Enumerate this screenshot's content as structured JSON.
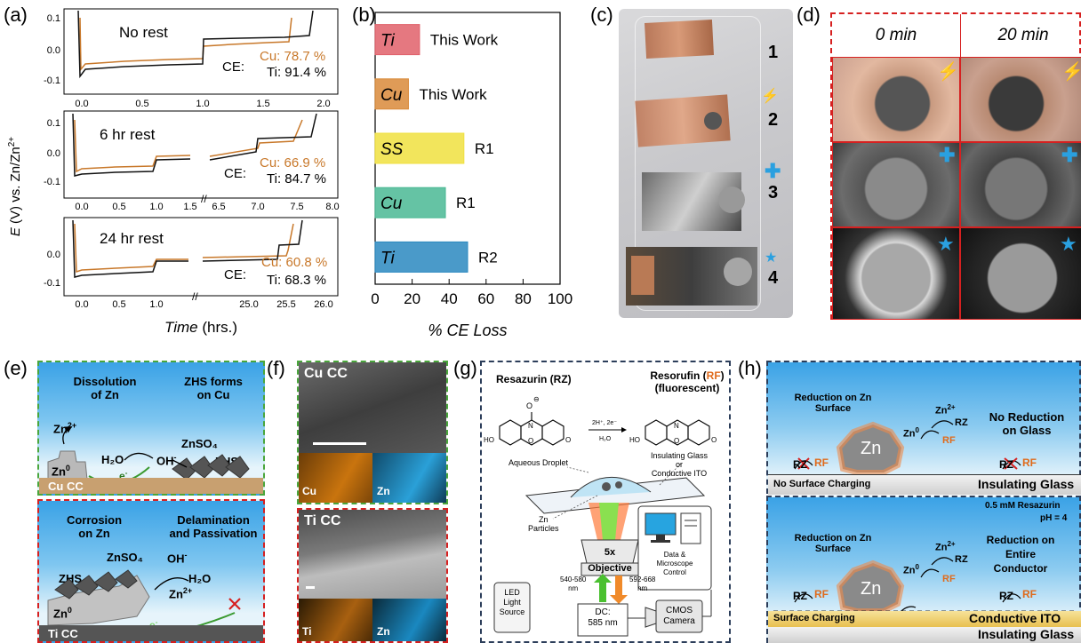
{
  "panels": {
    "a": "(a)",
    "b": "(b)",
    "c": "(c)",
    "d": "(d)",
    "e": "(e)",
    "f": "(f)",
    "g": "(g)",
    "h": "(h)"
  },
  "panel_a": {
    "ylabel_italic": "E",
    "ylabel_rest": " (V) vs. Zn/Zn",
    "ylabel_sup": "2+",
    "xlabel_italic": "Time",
    "xlabel_rest": " (hrs.)",
    "subplots": [
      {
        "title": "No rest",
        "ce": "CE:",
        "cu": "Cu: 78.7 %",
        "ti": "Ti: 91.4 %",
        "yticks": [
          "0.1",
          "0.0",
          "-0.1"
        ],
        "xticks": [
          "0.0",
          "0.5",
          "1.0",
          "1.5",
          "2.0"
        ]
      },
      {
        "title": "6 hr rest",
        "ce": "CE:",
        "cu": "Cu: 66.9 %",
        "ti": "Ti: 84.7 %",
        "yticks": [
          "0.1",
          "0.0",
          "-0.1"
        ],
        "xticks": [
          "0.0",
          "0.5",
          "1.0",
          "1.5",
          "6.5",
          "7.0",
          "7.5",
          "8.0"
        ]
      },
      {
        "title": "24 hr rest",
        "ce": "CE:",
        "cu": "Cu: 60.8 %",
        "ti": "Ti: 68.3 %",
        "yticks": [
          "0.0",
          "-0.1"
        ],
        "xticks": [
          "0.0",
          "0.5",
          "1.0",
          "25.0",
          "25.5",
          "26.0"
        ]
      }
    ],
    "colors": {
      "cu": "#c8782a",
      "ti": "#111111"
    }
  },
  "chart_data": {
    "type": "bar",
    "orientation": "horizontal",
    "categories": [
      "Ti",
      "Cu",
      "SS",
      "Cu",
      "Ti"
    ],
    "annotations": [
      "This Work",
      "This Work",
      "R1",
      "R1",
      "R2"
    ],
    "values": [
      24,
      18,
      48,
      38,
      50
    ],
    "colors": [
      "#e0606a",
      "#d98a3a",
      "#f0e040",
      "#4ab894",
      "#2a88c0"
    ],
    "xlabel": "% CE Loss",
    "xlim": [
      0,
      100
    ],
    "xticks": [
      "0",
      "20",
      "40",
      "60",
      "80",
      "100"
    ]
  },
  "panel_c": {
    "labels": [
      "1",
      "2",
      "3",
      "4"
    ]
  },
  "panel_d": {
    "headers": [
      "0 min",
      "20 min"
    ]
  },
  "panel_e": {
    "top": {
      "left_title": "Dissolution\nof Zn",
      "right_title": "ZHS forms\non Cu",
      "zn2": "Zn",
      "zn2sup": "2+",
      "h2o": "H₂O",
      "oh": "OH",
      "ohsup": "-",
      "znso4": "ZnSO₄",
      "zhs": "ZHS",
      "zn0": "Zn",
      "zn0sup": "0",
      "e": "e",
      "esup": "-",
      "base": "Cu CC"
    },
    "bottom": {
      "left_title": "Corrosion\non Zn",
      "right_title": "Delamination\nand Passivation",
      "zhs": "ZHS",
      "znso4": "ZnSO₄",
      "oh": "OH",
      "ohsup": "-",
      "h2o": "H₂O",
      "zn2": "Zn",
      "zn2sup": "2+",
      "zn0": "Zn",
      "zn0sup": "0",
      "e": "e",
      "esup": "-",
      "base": "Ti CC"
    }
  },
  "panel_f": {
    "top_label": "Cu CC",
    "top_maps": [
      "Cu",
      "Zn"
    ],
    "bottom_label": "Ti CC",
    "bottom_maps": [
      "Ti",
      "Zn"
    ]
  },
  "panel_g": {
    "rz_title": "Resazurin (RZ)",
    "rf_title_a": "Resorufin (",
    "rf_title_rf": "RF",
    "rf_title_b": ")",
    "rf_sub": "(fluorescent)",
    "arrow_top": "2H⁺, 2e⁻",
    "arrow_bot": "H₂O",
    "droplet": "Aqueous Droplet",
    "glass": "Insulating Glass\nor\nConductive ITO",
    "particles": "Zn\nParticles",
    "objective_mag": "5x",
    "objective": "Objective",
    "ex": "540-580\nnm",
    "em": "592-668\nnm",
    "dc": "DC:\n585 nm",
    "led": "LED\nLight\nSource",
    "cmos": "CMOS\nCamera",
    "pc": "Data &\nMicroscope\nControl"
  },
  "panel_h": {
    "top": {
      "red_zn": "Reduction on Zn\nSurface",
      "no_red": "No Reduction\non Glass",
      "rz": "RZ",
      "rf": "RF",
      "zn": "Zn",
      "zn0": "Zn",
      "zn0sup": "0",
      "zn2": "Zn",
      "zn2sup": "2+",
      "no_charging": "No Surface Charging",
      "glass": "Insulating Glass"
    },
    "bottom": {
      "conc": "0.5 mM Resazurin",
      "ph": "pH = 4",
      "red_zn": "Reduction on Zn\nSurface",
      "red_all": "Reduction on\nEntire\nConductor",
      "rz": "RZ",
      "rf": "RF",
      "zn": "Zn",
      "zn0": "Zn",
      "zn0sup": "0",
      "zn2": "Zn",
      "zn2sup": "2+",
      "charging": "Surface Charging",
      "ito": "Conductive ITO",
      "glass": "Insulating Glass"
    }
  }
}
